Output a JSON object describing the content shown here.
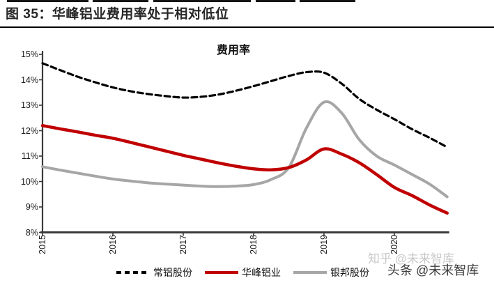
{
  "header": {
    "title": "图 35：华峰铝业费用率处于相对低位"
  },
  "chart_data": {
    "type": "line",
    "title": "费用率",
    "xlabel": "",
    "ylabel": "",
    "ylim": [
      8,
      15
    ],
    "xlim": [
      2015,
      2020.77
    ],
    "grid": false,
    "legend_position": "bottom",
    "y_tick_labels": [
      "8%",
      "9%",
      "10%",
      "11%",
      "12%",
      "13%",
      "14%",
      "15%"
    ],
    "y_tick_values": [
      8,
      9,
      10,
      11,
      12,
      13,
      14,
      15
    ],
    "x_tick_labels": [
      "2015",
      "2016",
      "2017",
      "2018",
      "2019",
      "2020"
    ],
    "x_tick_values": [
      2015,
      2016,
      2017,
      2018,
      2019,
      2020
    ],
    "x": [
      2015,
      2015.25,
      2015.5,
      2015.75,
      2016,
      2016.25,
      2016.5,
      2016.75,
      2017,
      2017.25,
      2017.5,
      2017.75,
      2018,
      2018.25,
      2018.5,
      2018.75,
      2019,
      2019.25,
      2019.5,
      2019.75,
      2020,
      2020.25,
      2020.5,
      2020.75
    ],
    "series": [
      {
        "name": "常铝股份",
        "color": "#000000",
        "style": "dashed",
        "values": [
          14.65,
          14.38,
          14.12,
          13.9,
          13.7,
          13.55,
          13.44,
          13.36,
          13.3,
          13.33,
          13.42,
          13.57,
          13.75,
          13.95,
          14.15,
          14.3,
          14.28,
          13.85,
          13.25,
          12.82,
          12.45,
          12.06,
          11.72,
          11.35
        ]
      },
      {
        "name": "华峰铝业",
        "color": "#c00000",
        "style": "solid",
        "values": [
          12.2,
          12.07,
          11.95,
          11.82,
          11.7,
          11.54,
          11.37,
          11.2,
          11.03,
          10.88,
          10.73,
          10.6,
          10.5,
          10.46,
          10.55,
          10.85,
          11.28,
          11.08,
          10.74,
          10.27,
          9.77,
          9.45,
          9.08,
          8.76
        ]
      },
      {
        "name": "银邦股份",
        "color": "#a6a6a6",
        "style": "solid",
        "values": [
          10.58,
          10.45,
          10.33,
          10.21,
          10.1,
          10.02,
          9.95,
          9.9,
          9.86,
          9.82,
          9.8,
          9.82,
          9.88,
          10.08,
          10.55,
          12.1,
          13.12,
          12.7,
          11.65,
          11.0,
          10.65,
          10.28,
          9.9,
          9.4
        ]
      }
    ],
    "axis_color": "#3a3a3a"
  },
  "watermark": {
    "light_text": "知乎 @未来智库",
    "dark_text": "头条 @未来智库"
  }
}
